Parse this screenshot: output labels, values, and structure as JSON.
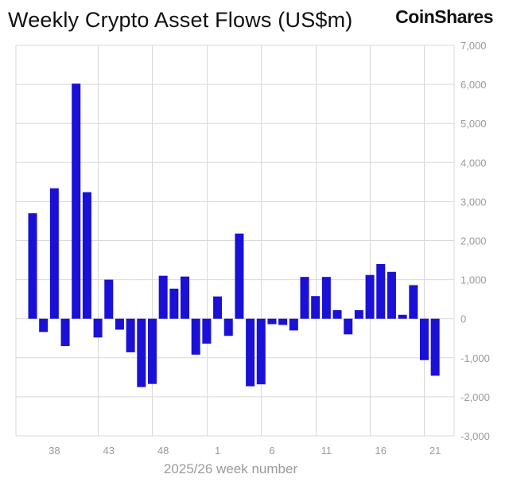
{
  "header": {
    "title": "Weekly Crypto Asset Flows (US$m)",
    "brand": "CoinShares"
  },
  "chart_data": {
    "type": "bar",
    "title": "Weekly Crypto Asset Flows (US$m)",
    "xlabel": "2025/26 week number",
    "ylabel": "",
    "ylim": [
      -3000,
      7000
    ],
    "yticks": [
      -3000,
      -2000,
      -1000,
      0,
      1000,
      2000,
      3000,
      4000,
      5000,
      6000,
      7000
    ],
    "ytick_labels": [
      "-3,000",
      "-2,000",
      "-1,000",
      "0",
      "1,000",
      "2,000",
      "3,000",
      "4,000",
      "5,000",
      "6,000",
      "7,000"
    ],
    "y_axis_side": "right",
    "xtick_labels": [
      "38",
      "43",
      "48",
      "1",
      "6",
      "11",
      "16",
      "21"
    ],
    "vertical_gridlines_at": [
      "42",
      "47",
      "52",
      "5",
      "10",
      "15",
      "20"
    ],
    "grid": true,
    "bar_color": "#1a10d6",
    "categories": [
      "36",
      "37",
      "38",
      "39",
      "40",
      "41",
      "42",
      "43",
      "44",
      "45",
      "46",
      "47",
      "48",
      "49",
      "50",
      "51",
      "52",
      "1",
      "2",
      "3",
      "4",
      "5",
      "6",
      "7",
      "8",
      "9",
      "10",
      "11",
      "12",
      "13",
      "14",
      "15",
      "16",
      "17",
      "18",
      "19",
      "20",
      "21"
    ],
    "values": [
      2700,
      -340,
      3340,
      -700,
      6020,
      3240,
      -480,
      1000,
      -280,
      -860,
      -1750,
      -1670,
      1100,
      770,
      1080,
      -920,
      -640,
      570,
      -440,
      2180,
      -1730,
      -1680,
      -140,
      -160,
      -300,
      1070,
      580,
      1070,
      220,
      -400,
      220,
      1120,
      1400,
      1200,
      100,
      860,
      -1060,
      -1460
    ]
  }
}
